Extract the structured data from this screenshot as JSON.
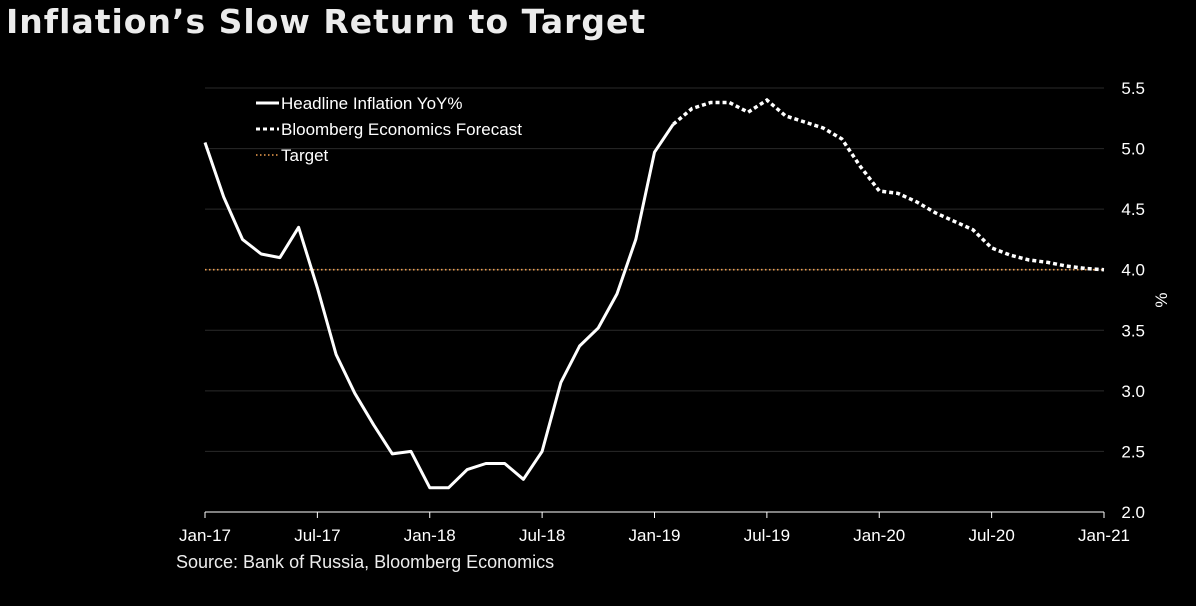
{
  "title": "Inflation’s Slow Return to Target",
  "source": "Source: Bank of Russia, Bloomberg Economics",
  "colors": {
    "background": "#000000",
    "headline": "#ffffff",
    "forecast": "#ffffff",
    "target": "#f0a050",
    "grid": "#2a2a2a"
  },
  "chart_data": {
    "type": "line",
    "ylabel": "%",
    "ylim": [
      2.0,
      5.5
    ],
    "y_ticks": [
      "2.0",
      "2.5",
      "3.0",
      "3.5",
      "4.0",
      "4.5",
      "5.0",
      "5.5"
    ],
    "x_ticks": [
      "Jan-17",
      "Jul-17",
      "Jan-18",
      "Jul-18",
      "Jan-19",
      "Jul-19",
      "Jan-20",
      "Jul-20",
      "Jan-21"
    ],
    "x_range": [
      "2017-01",
      "2021-01"
    ],
    "grid": true,
    "legend_position": "top-left",
    "series": [
      {
        "name": "Headline Inflation YoY%",
        "style": "solid",
        "x": [
          "2017-01",
          "2017-02",
          "2017-03",
          "2017-04",
          "2017-05",
          "2017-06",
          "2017-07",
          "2017-08",
          "2017-09",
          "2017-10",
          "2017-11",
          "2017-12",
          "2018-01",
          "2018-02",
          "2018-03",
          "2018-04",
          "2018-05",
          "2018-06",
          "2018-07",
          "2018-08",
          "2018-09",
          "2018-10",
          "2018-11",
          "2018-12",
          "2019-01",
          "2019-02"
        ],
        "values": [
          5.05,
          4.6,
          4.25,
          4.13,
          4.1,
          4.35,
          3.85,
          3.3,
          2.98,
          2.72,
          2.48,
          2.5,
          2.2,
          2.2,
          2.35,
          2.4,
          2.4,
          2.27,
          2.5,
          3.07,
          3.37,
          3.52,
          3.8,
          4.25,
          4.97,
          5.2
        ]
      },
      {
        "name": "Bloomberg Economics Forecast",
        "style": "dotted",
        "x": [
          "2019-02",
          "2019-03",
          "2019-04",
          "2019-05",
          "2019-06",
          "2019-07",
          "2019-08",
          "2019-09",
          "2019-10",
          "2019-11",
          "2019-12",
          "2020-01",
          "2020-02",
          "2020-03",
          "2020-04",
          "2020-05",
          "2020-06",
          "2020-07",
          "2020-08",
          "2020-09",
          "2020-10",
          "2020-11",
          "2020-12",
          "2021-01"
        ],
        "values": [
          5.2,
          5.33,
          5.38,
          5.38,
          5.3,
          5.4,
          5.27,
          5.22,
          5.17,
          5.08,
          4.85,
          4.65,
          4.63,
          4.56,
          4.47,
          4.4,
          4.33,
          4.18,
          4.12,
          4.08,
          4.06,
          4.03,
          4.01,
          4.0
        ]
      },
      {
        "name": "Target",
        "style": "dotted",
        "x": [
          "2017-01",
          "2021-01"
        ],
        "values": [
          4.0,
          4.0
        ]
      }
    ]
  }
}
